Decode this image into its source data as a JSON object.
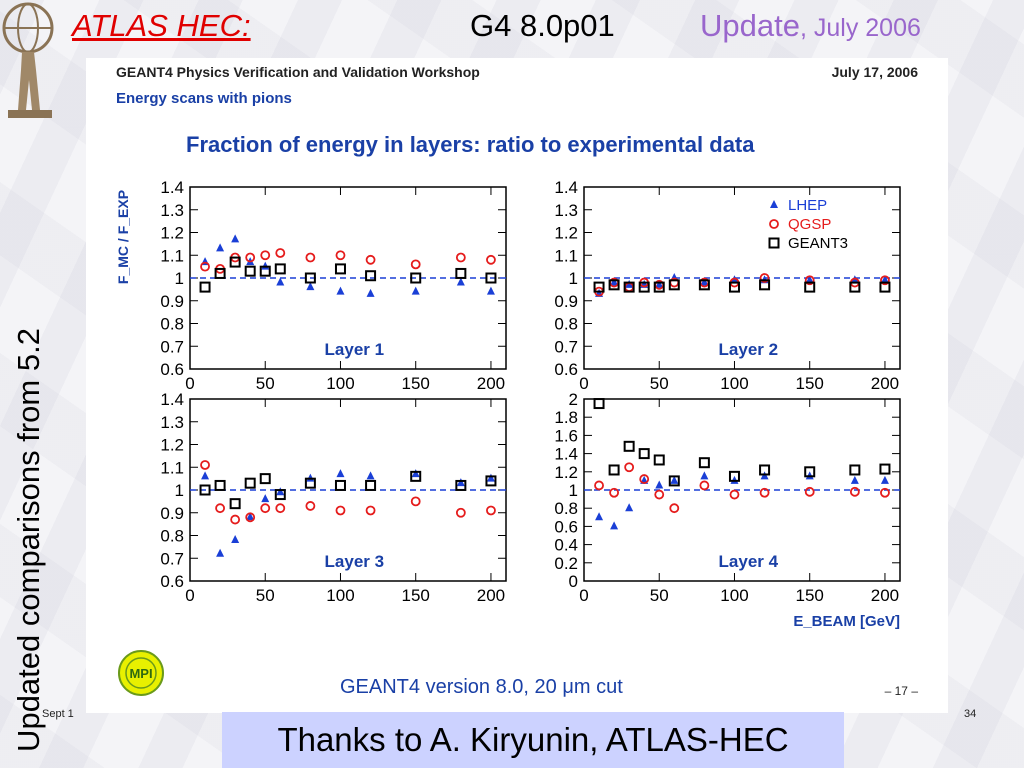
{
  "slide": {
    "header_left": "ATLAS HEC:",
    "header_center": "G4 8.0p01",
    "header_update": "Update",
    "header_date": ", July 2006",
    "side_title": "Updated comparisons from 5.2",
    "footer_left": "Sept 1",
    "footer_right": "34",
    "thanks": "Thanks to A. Kiryunin, ATLAS-HEC"
  },
  "colors": {
    "lhep": "#1a3fd6",
    "qgsp": "#e51c1c",
    "geant3": "#000000",
    "title_blue": "#1a40a6",
    "header_red": "#e00000",
    "header_purple": "#9966cc",
    "thanks_bg": "#ccd2ff"
  },
  "page": {
    "workshop": "GEANT4 Physics Verification and Validation Workshop",
    "date": "July 17, 2006",
    "subtitle": "Energy scans with pions",
    "main_title": "Fraction of energy in layers: ratio to experimental data",
    "footer": "GEANT4 version 8.0, 20 μm cut",
    "page_number": "– 17 –",
    "mpi_logo": "MPI"
  },
  "chart_data": [
    {
      "type": "scatter",
      "title": "Layer 1",
      "ylabel": "F_MC / F_EXP",
      "xlim": [
        0,
        210
      ],
      "ylim": [
        0.6,
        1.4
      ],
      "yticks": [
        0.6,
        0.7,
        0.8,
        0.9,
        1,
        1.1,
        1.2,
        1.3,
        1.4
      ],
      "xticks": [
        0,
        50,
        100,
        150,
        200
      ],
      "reference_line": 1,
      "legend": {
        "entries": [
          "LHEP",
          "QGSP",
          "GEANT3"
        ],
        "position": ""
      },
      "series": [
        {
          "name": "LHEP",
          "marker": "triangle",
          "x": [
            10,
            20,
            30,
            40,
            50,
            60,
            80,
            100,
            120,
            150,
            180,
            200
          ],
          "y": [
            1.07,
            1.13,
            1.17,
            1.07,
            1.05,
            0.98,
            0.96,
            0.94,
            0.93,
            0.94,
            0.98,
            0.94
          ]
        },
        {
          "name": "QGSP",
          "marker": "circle",
          "x": [
            10,
            20,
            30,
            40,
            50,
            60,
            80,
            100,
            120,
            150,
            180,
            200
          ],
          "y": [
            1.05,
            1.04,
            1.09,
            1.09,
            1.1,
            1.11,
            1.09,
            1.1,
            1.08,
            1.06,
            1.09,
            1.08
          ]
        },
        {
          "name": "GEANT3",
          "marker": "square",
          "x": [
            10,
            20,
            30,
            40,
            50,
            60,
            80,
            100,
            120,
            150,
            180,
            200
          ],
          "y": [
            0.96,
            1.02,
            1.07,
            1.03,
            1.03,
            1.04,
            1.0,
            1.04,
            1.01,
            1.0,
            1.02,
            1.0
          ]
        }
      ]
    },
    {
      "type": "scatter",
      "title": "Layer 2",
      "ylabel": "",
      "xlim": [
        0,
        210
      ],
      "ylim": [
        0.6,
        1.4
      ],
      "yticks": [
        0.6,
        0.7,
        0.8,
        0.9,
        1,
        1.1,
        1.2,
        1.3,
        1.4
      ],
      "xticks": [
        0,
        50,
        100,
        150,
        200
      ],
      "reference_line": 1,
      "legend": {
        "entries": [
          "LHEP",
          "QGSP",
          "GEANT3"
        ],
        "position": "top-right"
      },
      "series": [
        {
          "name": "LHEP",
          "marker": "triangle",
          "x": [
            10,
            20,
            30,
            40,
            50,
            60,
            80,
            100,
            120,
            150,
            180,
            200
          ],
          "y": [
            0.93,
            0.98,
            0.97,
            0.97,
            0.97,
            1.0,
            0.98,
            0.99,
            0.99,
            0.99,
            0.99,
            0.99
          ]
        },
        {
          "name": "QGSP",
          "marker": "circle",
          "x": [
            10,
            20,
            30,
            40,
            50,
            60,
            80,
            100,
            120,
            150,
            180,
            200
          ],
          "y": [
            0.94,
            0.98,
            0.96,
            0.98,
            0.97,
            0.98,
            0.98,
            0.98,
            1.0,
            0.99,
            0.98,
            0.99
          ]
        },
        {
          "name": "GEANT3",
          "marker": "square",
          "x": [
            10,
            20,
            30,
            40,
            50,
            60,
            80,
            100,
            120,
            150,
            180,
            200
          ],
          "y": [
            0.96,
            0.97,
            0.96,
            0.96,
            0.96,
            0.97,
            0.97,
            0.96,
            0.97,
            0.96,
            0.96,
            0.96
          ]
        }
      ]
    },
    {
      "type": "scatter",
      "title": "Layer 3",
      "ylabel": "",
      "xlim": [
        0,
        210
      ],
      "ylim": [
        0.6,
        1.4
      ],
      "yticks": [
        0.6,
        0.7,
        0.8,
        0.9,
        1,
        1.1,
        1.2,
        1.3,
        1.4
      ],
      "xticks": [
        0,
        50,
        100,
        150,
        200
      ],
      "reference_line": 1,
      "legend": {
        "entries": [
          "LHEP",
          "QGSP",
          "GEANT3"
        ],
        "position": ""
      },
      "series": [
        {
          "name": "LHEP",
          "marker": "triangle",
          "x": [
            10,
            20,
            30,
            40,
            50,
            60,
            80,
            100,
            120,
            150,
            180,
            200
          ],
          "y": [
            1.06,
            0.72,
            0.78,
            0.88,
            0.96,
            0.99,
            1.05,
            1.07,
            1.06,
            1.07,
            1.03,
            1.05
          ]
        },
        {
          "name": "QGSP",
          "marker": "circle",
          "x": [
            10,
            20,
            30,
            40,
            50,
            60,
            80,
            100,
            120,
            150,
            180,
            200
          ],
          "y": [
            1.11,
            0.92,
            0.87,
            0.88,
            0.92,
            0.92,
            0.93,
            0.91,
            0.91,
            0.95,
            0.9,
            0.91
          ]
        },
        {
          "name": "GEANT3",
          "marker": "square",
          "x": [
            10,
            20,
            30,
            40,
            50,
            60,
            80,
            100,
            120,
            150,
            180,
            200
          ],
          "y": [
            1.0,
            1.02,
            0.94,
            1.03,
            1.05,
            0.98,
            1.03,
            1.02,
            1.02,
            1.06,
            1.02,
            1.04
          ]
        }
      ]
    },
    {
      "type": "scatter",
      "title": "Layer 4",
      "ylabel": "",
      "xlabel": "E_BEAM [GeV]",
      "xlim": [
        0,
        210
      ],
      "ylim": [
        0,
        2
      ],
      "yticks": [
        0,
        0.2,
        0.4,
        0.6,
        0.8,
        1,
        1.2,
        1.4,
        1.6,
        1.8,
        2
      ],
      "xticks": [
        0,
        50,
        100,
        150,
        200
      ],
      "reference_line": 1,
      "legend": {
        "entries": [
          "LHEP",
          "QGSP",
          "GEANT3"
        ],
        "position": ""
      },
      "series": [
        {
          "name": "LHEP",
          "marker": "triangle",
          "x": [
            10,
            20,
            30,
            40,
            50,
            60,
            80,
            100,
            120,
            150,
            180,
            200
          ],
          "y": [
            0.7,
            0.6,
            0.8,
            1.1,
            1.05,
            1.1,
            1.15,
            1.1,
            1.15,
            1.15,
            1.1,
            1.1
          ]
        },
        {
          "name": "QGSP",
          "marker": "circle",
          "x": [
            10,
            20,
            30,
            40,
            50,
            60,
            80,
            100,
            120,
            150,
            180,
            200
          ],
          "y": [
            1.05,
            0.97,
            1.25,
            1.12,
            0.95,
            0.8,
            1.05,
            0.95,
            0.97,
            0.98,
            0.98,
            0.97
          ]
        },
        {
          "name": "GEANT3",
          "marker": "square",
          "x": [
            10,
            20,
            30,
            40,
            50,
            60,
            80,
            100,
            120,
            150,
            180,
            200
          ],
          "y": [
            1.95,
            1.22,
            1.48,
            1.4,
            1.33,
            1.1,
            1.3,
            1.15,
            1.22,
            1.2,
            1.22,
            1.23
          ]
        }
      ]
    }
  ]
}
